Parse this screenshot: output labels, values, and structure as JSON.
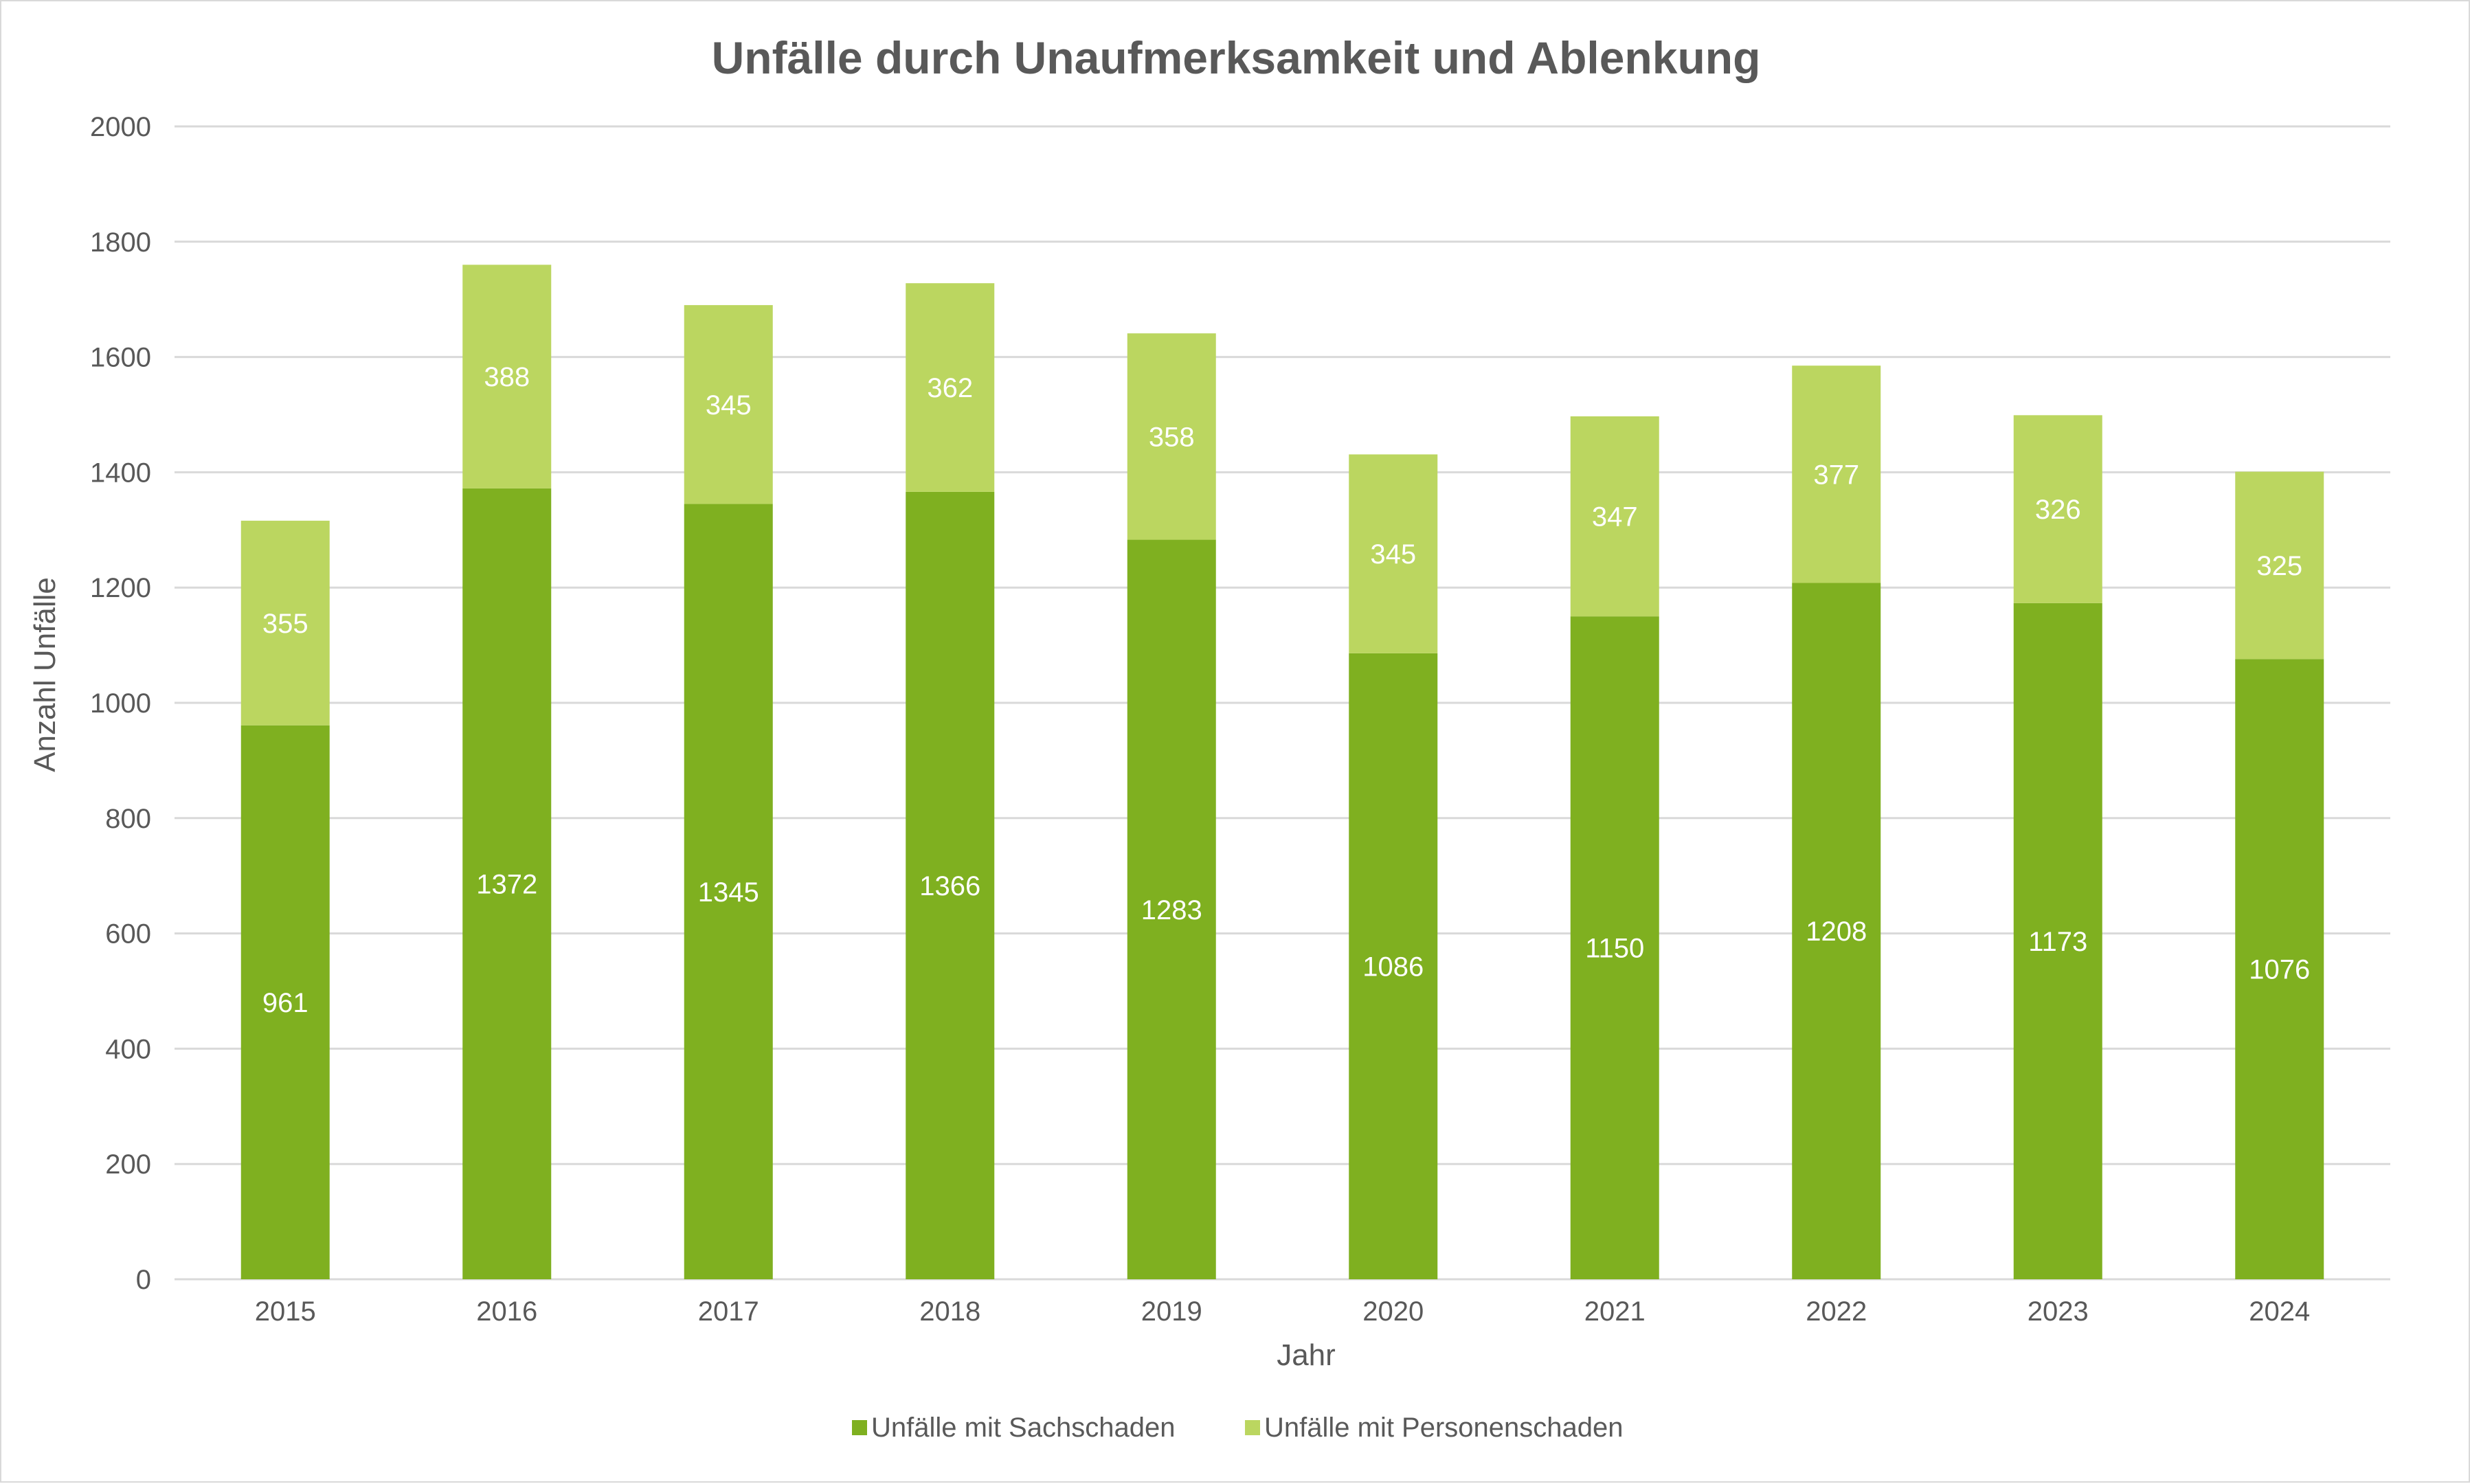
{
  "chart_data": {
    "type": "bar",
    "stacked": true,
    "title": "Unfälle durch Unaufmerksamkeit und Ablenkung",
    "xlabel": "Jahr",
    "ylabel": "Anzahl Unfälle",
    "ylim": [
      0,
      2000
    ],
    "yticks": [
      "0",
      "200",
      "400",
      "600",
      "800",
      "1000",
      "1200",
      "1400",
      "1600",
      "1800",
      "2000"
    ],
    "grid": true,
    "legend_position": "bottom",
    "categories": [
      "2015",
      "2016",
      "2017",
      "2018",
      "2019",
      "2020",
      "2021",
      "2022",
      "2023",
      "2024"
    ],
    "series": [
      {
        "name": "Unfälle mit Sachschaden",
        "color": "#7fb020",
        "values": [
          961,
          1372,
          1345,
          1366,
          1283,
          1086,
          1150,
          1208,
          1173,
          1076
        ]
      },
      {
        "name": "Unfälle mit Personenschaden",
        "color": "#bbd660",
        "values": [
          355,
          388,
          345,
          362,
          358,
          345,
          347,
          377,
          326,
          325
        ]
      }
    ]
  }
}
